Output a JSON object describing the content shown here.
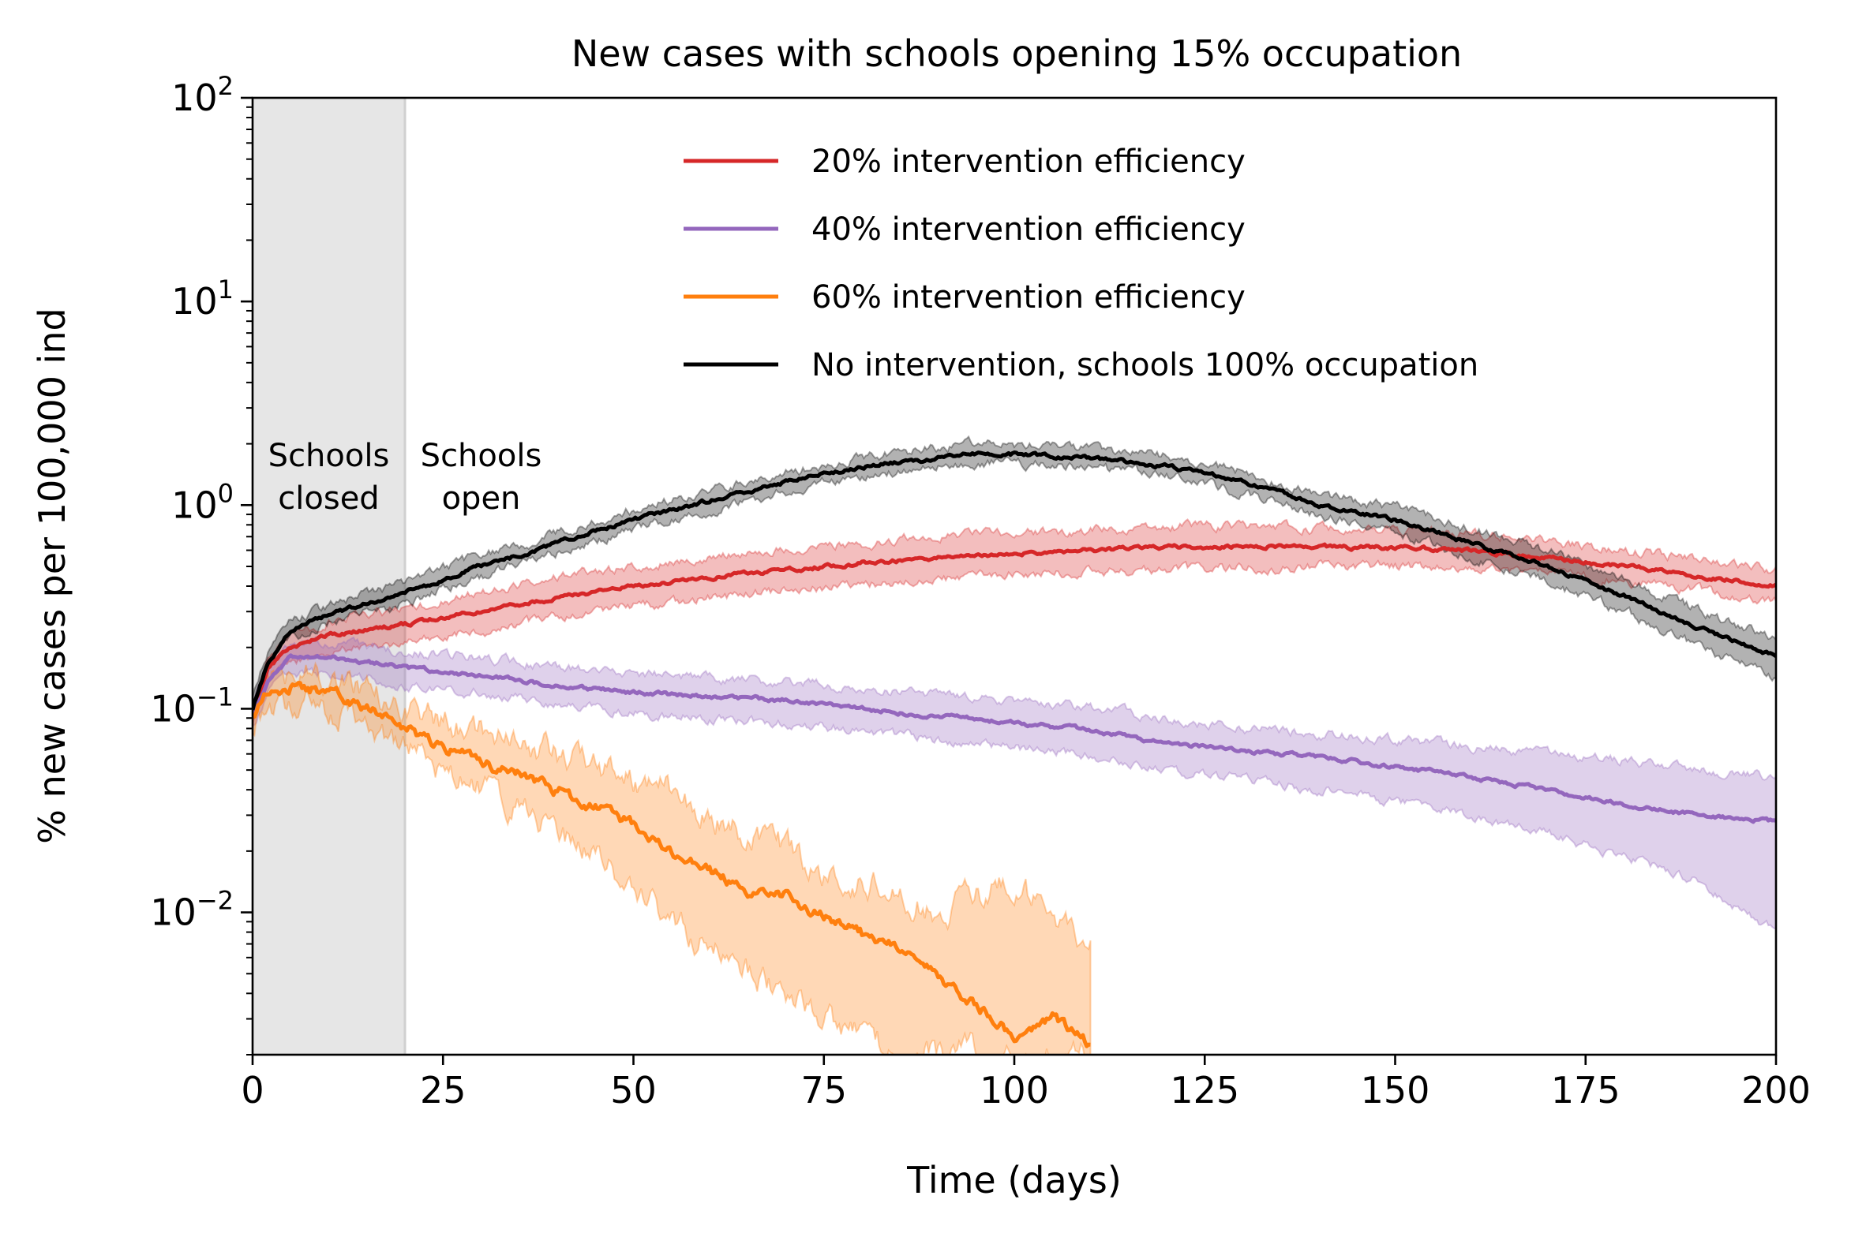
{
  "chart_data": {
    "type": "line",
    "title": "New cases with schools opening 15% occupation",
    "xlabel": "Time (days)",
    "ylabel": "% new cases per 100,000 ind",
    "xlim": [
      0,
      200
    ],
    "ylim": [
      0.002,
      100
    ],
    "yscale": "log",
    "grid": false,
    "legend_position": "top-right",
    "x_ticks": [
      0,
      25,
      50,
      75,
      100,
      125,
      150,
      175,
      200
    ],
    "y_ticks": [
      {
        "value": 0.01,
        "base": "10",
        "exp": "−2"
      },
      {
        "value": 0.1,
        "base": "10",
        "exp": "−1"
      },
      {
        "value": 1,
        "base": "10",
        "exp": "0"
      },
      {
        "value": 10,
        "base": "10",
        "exp": "1"
      },
      {
        "value": 100,
        "base": "10",
        "exp": "2"
      }
    ],
    "shaded_region": {
      "x": [
        0,
        20
      ],
      "color": "#e6e6e6"
    },
    "annotations": [
      {
        "lines": [
          "Schools",
          "closed"
        ],
        "x": 10,
        "y": 1.55
      },
      {
        "lines": [
          "Schools",
          "open"
        ],
        "x": 30,
        "y": 1.55
      }
    ],
    "series": [
      {
        "name": "20% intervention efficiency",
        "color": "#d62728",
        "x": [
          0,
          2,
          5,
          10,
          20,
          30,
          40,
          50,
          60,
          70,
          80,
          90,
          100,
          110,
          120,
          130,
          140,
          150,
          160,
          170,
          180,
          190,
          200
        ],
        "y": [
          0.09,
          0.16,
          0.2,
          0.23,
          0.26,
          0.3,
          0.35,
          0.4,
          0.44,
          0.48,
          0.52,
          0.55,
          0.58,
          0.6,
          0.62,
          0.63,
          0.62,
          0.62,
          0.6,
          0.55,
          0.5,
          0.45,
          0.4
        ],
        "lower": [
          0.085,
          0.14,
          0.17,
          0.19,
          0.21,
          0.24,
          0.28,
          0.32,
          0.35,
          0.38,
          0.41,
          0.43,
          0.46,
          0.47,
          0.48,
          0.49,
          0.5,
          0.5,
          0.49,
          0.46,
          0.42,
          0.38,
          0.33
        ],
        "upper": [
          0.1,
          0.18,
          0.23,
          0.27,
          0.31,
          0.37,
          0.44,
          0.5,
          0.55,
          0.6,
          0.65,
          0.7,
          0.73,
          0.75,
          0.78,
          0.79,
          0.77,
          0.76,
          0.72,
          0.66,
          0.6,
          0.54,
          0.48
        ]
      },
      {
        "name": "40% intervention efficiency",
        "color": "#9467bd",
        "x": [
          0,
          2,
          5,
          10,
          20,
          30,
          40,
          50,
          60,
          70,
          80,
          90,
          100,
          110,
          120,
          130,
          140,
          150,
          160,
          170,
          180,
          190,
          200
        ],
        "y": [
          0.09,
          0.14,
          0.18,
          0.18,
          0.16,
          0.145,
          0.13,
          0.12,
          0.115,
          0.11,
          0.1,
          0.092,
          0.085,
          0.078,
          0.068,
          0.062,
          0.058,
          0.052,
          0.046,
          0.04,
          0.034,
          0.03,
          0.028
        ],
        "lower": [
          0.085,
          0.12,
          0.15,
          0.15,
          0.13,
          0.12,
          0.105,
          0.095,
          0.09,
          0.085,
          0.078,
          0.07,
          0.064,
          0.058,
          0.05,
          0.045,
          0.04,
          0.035,
          0.03,
          0.024,
          0.019,
          0.014,
          0.008
        ],
        "upper": [
          0.1,
          0.16,
          0.21,
          0.21,
          0.19,
          0.18,
          0.16,
          0.15,
          0.14,
          0.135,
          0.125,
          0.115,
          0.108,
          0.1,
          0.09,
          0.08,
          0.075,
          0.07,
          0.065,
          0.06,
          0.055,
          0.05,
          0.046
        ]
      },
      {
        "name": "60% intervention efficiency",
        "color": "#ff7f0e",
        "x": [
          0,
          2,
          5,
          10,
          15,
          20,
          25,
          30,
          35,
          40,
          45,
          50,
          55,
          60,
          65,
          70,
          75,
          80,
          85,
          90,
          95,
          100,
          105,
          110
        ],
        "y": [
          0.09,
          0.12,
          0.13,
          0.12,
          0.1,
          0.08,
          0.065,
          0.055,
          0.048,
          0.04,
          0.033,
          0.027,
          0.02,
          0.016,
          0.013,
          0.012,
          0.0095,
          0.0078,
          0.0068,
          0.0047,
          0.0035,
          0.0025,
          0.003,
          0.0022
        ],
        "lower": [
          0.085,
          0.1,
          0.11,
          0.1,
          0.085,
          0.065,
          0.05,
          0.04,
          0.032,
          0.025,
          0.018,
          0.013,
          0.009,
          0.007,
          0.005,
          0.004,
          0.003,
          0.0025,
          0.002,
          0.002,
          0.002,
          0.002,
          0.002,
          0.002
        ],
        "upper": [
          0.1,
          0.14,
          0.15,
          0.14,
          0.12,
          0.1,
          0.088,
          0.078,
          0.07,
          0.06,
          0.05,
          0.045,
          0.04,
          0.03,
          0.024,
          0.02,
          0.016,
          0.014,
          0.012,
          0.01,
          0.012,
          0.014,
          0.009,
          0.007
        ]
      },
      {
        "name": "No intervention, schools 100% occupation",
        "color": "#000000",
        "x": [
          0,
          2,
          5,
          10,
          20,
          30,
          40,
          50,
          60,
          70,
          80,
          90,
          95,
          100,
          110,
          120,
          130,
          140,
          150,
          160,
          170,
          180,
          190,
          200
        ],
        "y": [
          0.1,
          0.17,
          0.24,
          0.29,
          0.37,
          0.5,
          0.65,
          0.85,
          1.05,
          1.3,
          1.55,
          1.7,
          1.8,
          1.78,
          1.7,
          1.55,
          1.3,
          1.0,
          0.85,
          0.65,
          0.5,
          0.36,
          0.25,
          0.18
        ],
        "lower": [
          0.095,
          0.16,
          0.22,
          0.26,
          0.33,
          0.45,
          0.58,
          0.76,
          0.95,
          1.17,
          1.4,
          1.55,
          1.62,
          1.6,
          1.52,
          1.38,
          1.15,
          0.88,
          0.74,
          0.56,
          0.42,
          0.3,
          0.2,
          0.14
        ],
        "upper": [
          0.11,
          0.19,
          0.27,
          0.32,
          0.42,
          0.56,
          0.72,
          0.95,
          1.17,
          1.45,
          1.72,
          1.9,
          2.0,
          1.98,
          1.9,
          1.73,
          1.46,
          1.13,
          0.97,
          0.76,
          0.6,
          0.43,
          0.3,
          0.22
        ]
      }
    ]
  }
}
